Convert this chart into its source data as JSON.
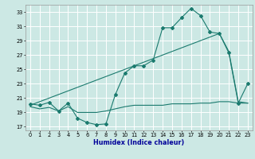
{
  "title": "",
  "xlabel": "Humidex (Indice chaleur)",
  "bg_color": "#cce8e4",
  "grid_color": "#ffffff",
  "line_color": "#1a7a6e",
  "xlim": [
    -0.5,
    23.5
  ],
  "ylim": [
    16.5,
    34
  ],
  "yticks": [
    17,
    19,
    21,
    23,
    25,
    27,
    29,
    31,
    33
  ],
  "xticks": [
    0,
    1,
    2,
    3,
    4,
    5,
    6,
    7,
    8,
    9,
    10,
    11,
    12,
    13,
    14,
    15,
    16,
    17,
    18,
    19,
    20,
    21,
    22,
    23
  ],
  "line1_x": [
    0,
    1,
    2,
    3,
    4,
    5,
    6,
    7,
    8,
    9,
    10,
    11,
    12,
    13,
    14,
    15,
    16,
    17,
    18,
    19,
    20,
    21,
    22,
    23
  ],
  "line1_y": [
    20.2,
    20.0,
    20.4,
    19.2,
    20.3,
    18.2,
    17.6,
    17.3,
    17.4,
    21.5,
    24.5,
    25.5,
    25.5,
    26.3,
    30.8,
    30.8,
    32.2,
    33.5,
    32.5,
    30.2,
    30.0,
    27.3,
    20.3,
    23.0
  ],
  "line2_x": [
    0,
    1,
    2,
    3,
    4,
    5,
    6,
    7,
    8,
    9,
    10,
    11,
    12,
    13,
    14,
    15,
    16,
    17,
    18,
    19,
    20,
    21,
    22,
    23
  ],
  "line2_y": [
    20.0,
    20.5,
    21.0,
    21.5,
    22.0,
    22.5,
    23.0,
    23.5,
    24.0,
    24.5,
    25.0,
    25.5,
    26.0,
    26.5,
    27.0,
    27.5,
    28.0,
    28.5,
    29.0,
    29.5,
    30.0,
    27.5,
    20.5,
    20.3
  ],
  "line3_x": [
    0,
    1,
    2,
    3,
    4,
    5,
    6,
    7,
    8,
    9,
    10,
    11,
    12,
    13,
    14,
    15,
    16,
    17,
    18,
    19,
    20,
    21,
    22,
    23
  ],
  "line3_y": [
    19.8,
    19.5,
    19.7,
    19.2,
    19.8,
    19.0,
    19.0,
    19.0,
    19.2,
    19.5,
    19.8,
    20.0,
    20.0,
    20.0,
    20.0,
    20.2,
    20.2,
    20.2,
    20.3,
    20.3,
    20.5,
    20.5,
    20.3,
    20.3
  ]
}
